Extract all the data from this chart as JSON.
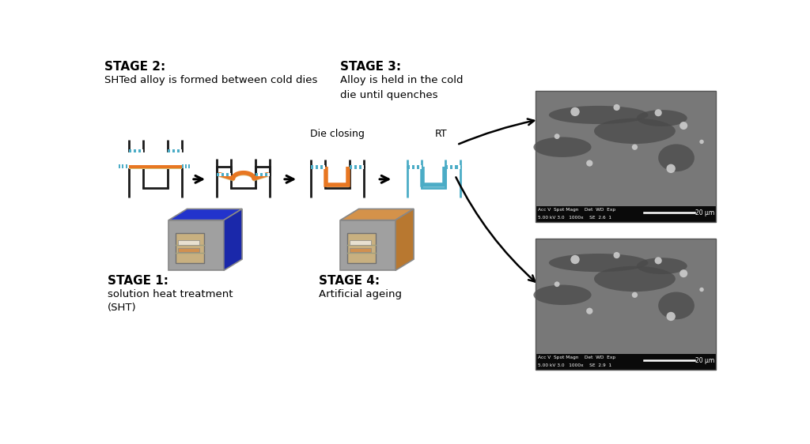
{
  "background_color": "#ffffff",
  "stage2_bold": "STAGE 2:",
  "stage2_text": "SHTed alloy is formed between cold dies",
  "stage3_bold": "STAGE 3:",
  "stage3_line1": "Alloy is held in the cold",
  "stage3_line2": "die until quenches",
  "stage1_bold": "STAGE 1:",
  "stage1_line1": "solution heat treatment",
  "stage1_line2": "(SHT)",
  "stage4_bold": "STAGE 4:",
  "stage4_text": "Artificial ageing",
  "die_closing_label": "Die closing",
  "rt_label": "RT",
  "die_color": "#1a1a1a",
  "sheet_orange": "#E87722",
  "sheet_yellow": "#D4C07A",
  "sheet_blue": "#4BACC6",
  "cap_color": "#4BACC6",
  "cap_stripe": "#ffffff",
  "oven1_top": "#2233CC",
  "oven1_side": "#1a28aa",
  "oven2_top": "#D4924A",
  "oven2_side": "#b87830",
  "oven_front": "#A0A0A0",
  "oven_window": "#C8B080",
  "sem_bg": "#7A7A7A",
  "sem_dark": "#505050",
  "sem_bar": "#111111",
  "arrow_color": "#111111"
}
